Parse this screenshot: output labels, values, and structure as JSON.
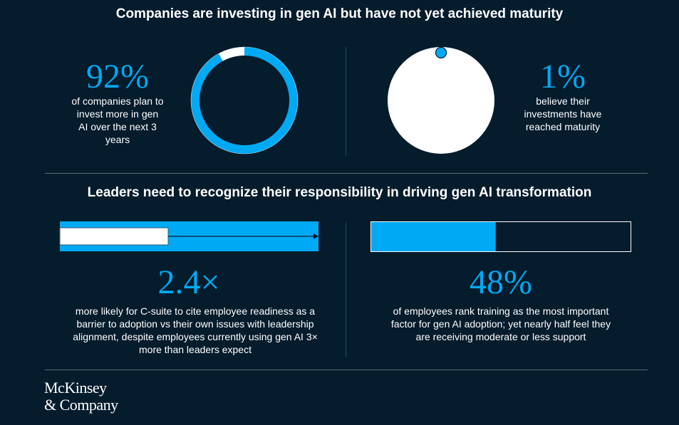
{
  "section1": {
    "title": "Companies are investing in gen AI but have not yet achieved maturity",
    "left": {
      "stat": "92%",
      "text": "of companies plan to invest more in gen AI over the next 3 years"
    },
    "right": {
      "stat": "1%",
      "text": "believe their investments have reached maturity"
    }
  },
  "section2": {
    "title": "Leaders need to recognize their responsibility in driving gen AI transformation",
    "left": {
      "stat": "2.4×",
      "text": "more likely for C-suite to cite employee readiness as a barrier to adoption vs their own issues with leadership alignment, despite employees currently using gen AI 3× more than leaders expect"
    },
    "right": {
      "stat": "48%",
      "text": "of employees rank training as the most important factor for gen AI adoption; yet nearly half feel they are receiving moderate or less support"
    }
  },
  "logo": {
    "line1": "McKinsey",
    "line2": "& Company"
  },
  "colors": {
    "background": "#051c2c",
    "accent": "#00a9f4",
    "white": "#ffffff"
  },
  "chart_data": [
    {
      "type": "pie",
      "style": "donut",
      "values": [
        92,
        8
      ],
      "colors": [
        "#00a9f4",
        "#ffffff"
      ]
    },
    {
      "type": "pie",
      "style": "circle-with-dot",
      "values": [
        1,
        99
      ],
      "colors": [
        "#00a9f4",
        "#ffffff"
      ]
    },
    {
      "type": "bar",
      "orientation": "horizontal",
      "values": [
        1,
        2.4
      ],
      "colors": [
        "#ffffff",
        "#00a9f4"
      ]
    },
    {
      "type": "bar",
      "orientation": "horizontal",
      "values": [
        48
      ],
      "xlim": [
        0,
        100
      ],
      "colors": [
        "#00a9f4"
      ]
    }
  ]
}
